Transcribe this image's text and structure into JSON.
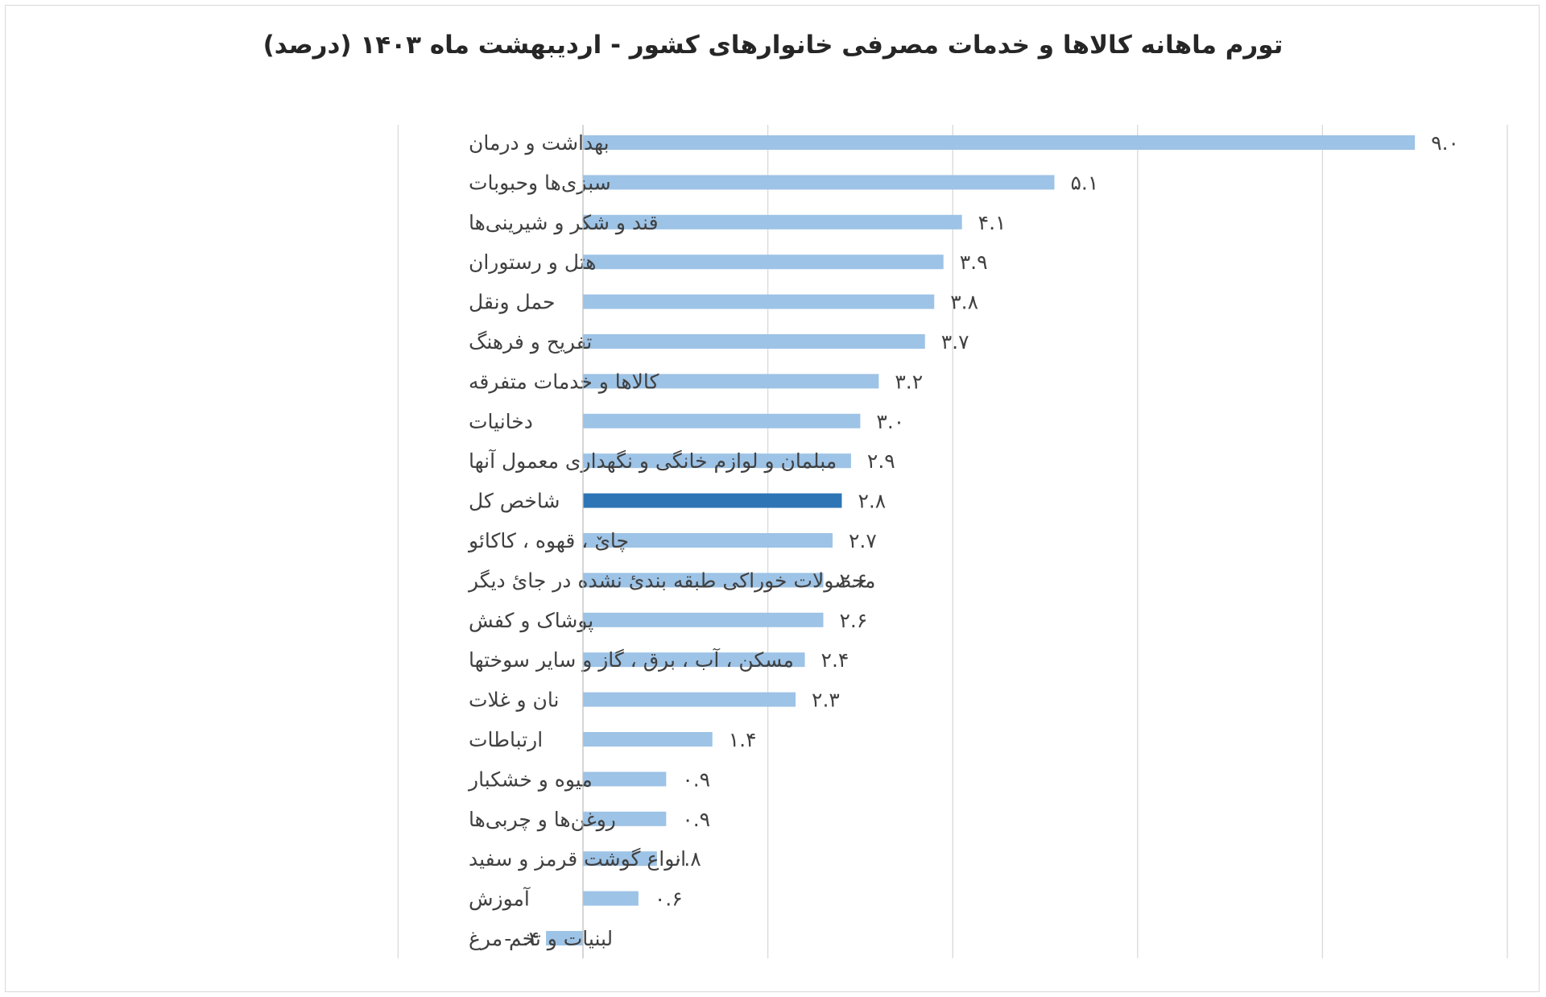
{
  "chart_data": {
    "type": "bar",
    "orientation": "horizontal",
    "title": "تورم ماهانه کالاها و خدمات مصرفی خانوارهای کشور - اردیبهشت ماه ۱۴۰۳ (درصد)",
    "xlim": [
      -2,
      10
    ],
    "grid": true,
    "legend": "none",
    "colors": {
      "default": "#9dc3e6",
      "highlight": "#2e75b6"
    },
    "highlight_category": "شاخص کل",
    "categories": [
      "بهداشت و درمان",
      "سبزی‌ها وحبوبات",
      "قند و شکر و شیرینی‌ها",
      "هتل و رستوران",
      "حمل ونقل",
      "تفریح و فرهنگ",
      "کالاها و خدمات متفرقه",
      "دخانیات",
      "مبلمان و لوازم خانگی و نگهداری معمول آنها",
      "شاخص کل",
      "چاێ ، قهوه ، کاکائو",
      "محصولات خوراکی طبقه بندیٔ نشده در جایٔ دیگر",
      "پوشاک و کفش",
      "مسکن ، آب ، برق ، گاز و سایر سوختها",
      "نان و غلات",
      "ارتباطات",
      "میوه و خشکبار",
      "روغن‌ها و چربی‌ها",
      "انواع گوشت قرمز و سفید",
      "آموزش",
      "لبنیات و تخم مرغ"
    ],
    "values": [
      9.0,
      5.1,
      4.1,
      3.9,
      3.8,
      3.7,
      3.2,
      3.0,
      2.9,
      2.8,
      2.7,
      2.6,
      2.6,
      2.4,
      2.3,
      1.4,
      0.9,
      0.9,
      0.8,
      0.6,
      -0.4
    ],
    "value_labels": [
      "۹.۰",
      "۵.۱",
      "۴.۱",
      "۳.۹",
      "۳.۸",
      "۳.۷",
      "۳.۲",
      "۳.۰",
      "۲.۹",
      "۲.۸",
      "۲.۷",
      "۲.۶",
      "۲.۶",
      "۲.۴",
      "۲.۳",
      "۱.۴",
      "۰.۹",
      "۰.۹",
      "۰.۸",
      "۰.۶",
      "-۰.۴"
    ]
  }
}
